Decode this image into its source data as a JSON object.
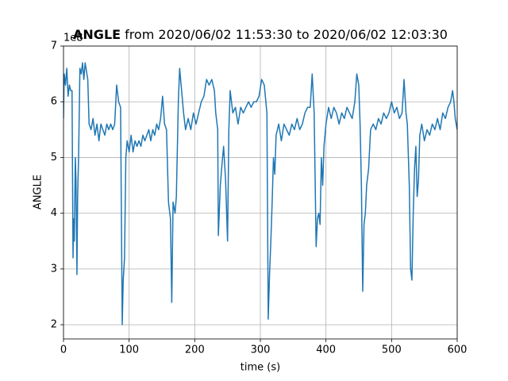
{
  "chart_data": {
    "type": "line",
    "title_bold": "ANGLE",
    "title": "from 2020/06/02 11:53:30 to 2020/06/02 12:03:30",
    "offset_label": "1e8",
    "xlabel": "time (s)",
    "ylabel": "ANGLE",
    "xlim": [
      0,
      600
    ],
    "ylim": [
      1.745,
      7
    ],
    "xticks": [
      0,
      100,
      200,
      300,
      400,
      500,
      600
    ],
    "yticks": [
      2,
      3,
      4,
      5,
      6,
      7
    ],
    "grid": true,
    "color": "#1f77b4",
    "x": [
      0,
      1,
      3,
      5,
      7,
      9,
      11,
      13,
      14.5,
      15.5,
      16.5,
      18,
      19,
      20.5,
      21.5,
      23,
      25,
      27,
      29,
      31,
      33,
      37,
      39,
      42,
      45,
      48,
      51,
      54,
      57,
      60,
      63,
      66,
      69,
      72,
      75,
      78,
      81,
      84,
      87,
      89.5,
      91,
      93,
      95,
      97,
      100,
      103,
      106,
      109,
      112,
      115,
      118,
      121,
      124,
      127,
      130,
      133,
      136,
      139,
      142,
      145,
      148,
      151,
      154,
      157,
      160,
      163,
      165,
      167,
      170,
      172,
      175,
      177,
      180,
      183,
      186,
      190,
      194,
      198,
      202,
      206,
      210,
      214,
      218,
      222,
      226,
      230,
      232,
      235,
      236,
      239,
      241,
      244,
      247,
      250,
      252,
      254,
      258,
      262,
      266,
      270,
      274,
      278,
      282,
      286,
      290,
      294,
      298,
      302,
      306,
      310,
      312,
      314,
      316,
      318,
      320,
      322,
      324,
      328,
      332,
      336,
      340,
      344,
      348,
      352,
      356,
      360,
      364,
      368,
      372,
      376,
      379,
      382,
      385,
      387,
      389,
      391,
      393,
      395,
      397,
      400,
      404,
      408,
      412,
      416,
      420,
      424,
      428,
      432,
      436,
      440,
      444,
      447,
      450,
      452,
      454,
      456,
      458,
      460,
      462,
      465,
      468,
      472,
      476,
      480,
      484,
      488,
      492,
      496,
      500,
      504,
      508,
      512,
      516,
      519,
      522,
      524,
      527,
      529,
      531,
      533,
      535,
      537,
      539,
      541,
      543,
      546,
      550,
      554,
      558,
      562,
      566,
      570,
      574,
      578,
      582,
      586,
      590,
      593,
      595,
      597,
      600
    ],
    "values": [
      5.7,
      6.5,
      6.3,
      6.6,
      6.1,
      6.3,
      6.2,
      6.2,
      3.2,
      3.9,
      3.5,
      5.0,
      4.6,
      2.9,
      4.3,
      5.0,
      6.6,
      6.5,
      6.7,
      6.4,
      6.7,
      6.4,
      5.6,
      5.5,
      5.7,
      5.4,
      5.6,
      5.3,
      5.6,
      5.5,
      5.4,
      5.6,
      5.5,
      5.6,
      5.5,
      5.6,
      6.3,
      6.0,
      5.9,
      2.0,
      2.8,
      3.2,
      5.0,
      5.3,
      5.1,
      5.4,
      5.1,
      5.3,
      5.2,
      5.3,
      5.2,
      5.4,
      5.3,
      5.4,
      5.5,
      5.3,
      5.5,
      5.4,
      5.6,
      5.5,
      5.7,
      6.1,
      5.6,
      5.5,
      4.2,
      3.9,
      2.4,
      4.2,
      4.0,
      4.3,
      6.0,
      6.6,
      6.2,
      5.8,
      5.5,
      5.7,
      5.5,
      5.8,
      5.6,
      5.8,
      6.0,
      6.1,
      6.4,
      6.3,
      6.4,
      6.2,
      5.8,
      5.5,
      3.6,
      4.5,
      4.8,
      5.2,
      4.6,
      3.5,
      5.5,
      6.2,
      5.8,
      5.9,
      5.6,
      5.9,
      5.8,
      5.9,
      6.0,
      5.9,
      6.0,
      6.0,
      6.1,
      6.4,
      6.3,
      5.8,
      2.1,
      2.9,
      3.5,
      4.2,
      5.0,
      4.7,
      5.4,
      5.6,
      5.3,
      5.6,
      5.5,
      5.4,
      5.6,
      5.5,
      5.7,
      5.5,
      5.6,
      5.8,
      5.9,
      5.9,
      6.5,
      5.8,
      3.4,
      3.9,
      4.0,
      3.8,
      5.0,
      4.5,
      5.2,
      5.6,
      5.9,
      5.7,
      5.9,
      5.8,
      5.6,
      5.8,
      5.7,
      5.9,
      5.8,
      5.7,
      6.0,
      6.5,
      6.3,
      5.6,
      4.5,
      2.6,
      3.8,
      4.0,
      4.5,
      4.8,
      5.5,
      5.6,
      5.5,
      5.7,
      5.6,
      5.8,
      5.7,
      5.8,
      6.0,
      5.8,
      5.9,
      5.7,
      5.8,
      6.4,
      5.8,
      5.6,
      4.5,
      3.0,
      2.8,
      4.0,
      4.8,
      5.2,
      4.3,
      4.6,
      5.4,
      5.6,
      5.3,
      5.5,
      5.4,
      5.6,
      5.5,
      5.7,
      5.5,
      5.8,
      5.7,
      5.9,
      6.0,
      6.2,
      6.0,
      5.7,
      5.5
    ]
  }
}
